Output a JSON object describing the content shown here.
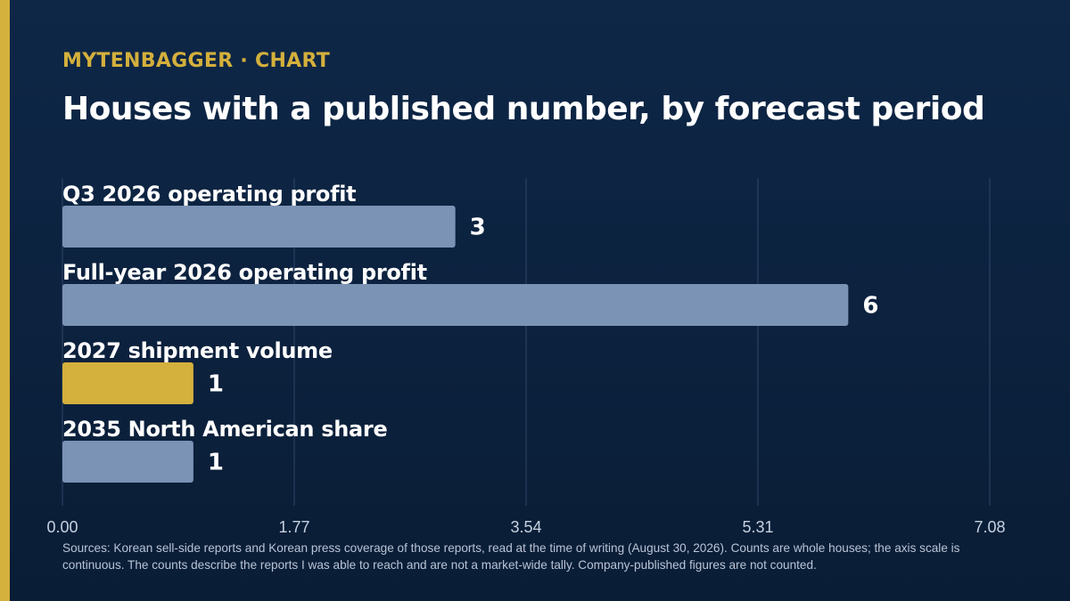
{
  "kicker": "MYTENBAGGER · CHART",
  "title": "Houses with a published number, by forecast period",
  "sources": "Sources: Korean sell-side reports and Korean press coverage of those reports, read at the time of writing (August 30, 2026). Counts are whole houses; the axis scale is continuous. The counts describe the reports I was able to reach and are not a market-wide tally. Company-published figures are not counted.",
  "colors": {
    "background": "#0e2747",
    "accent": "#d4b03c",
    "bar": "#7b93b5",
    "highlight_bar": "#d4b03c",
    "gridline": "#2f4668",
    "axis_text": "#c7d1df"
  },
  "chart_data": {
    "type": "bar",
    "orientation": "horizontal",
    "title": "Houses with a published number, by forecast period",
    "categories": [
      "Q3 2026 operating profit",
      "Full-year 2026 operating profit",
      "2027 shipment volume",
      "2035 North American share"
    ],
    "values": [
      3,
      6,
      1,
      1
    ],
    "highlight": [
      false,
      false,
      true,
      false
    ],
    "xlim": [
      0,
      7.08
    ],
    "xticks": [
      "0.00",
      "1.77",
      "3.54",
      "5.31",
      "7.08"
    ],
    "grid": true,
    "legend": "none"
  }
}
